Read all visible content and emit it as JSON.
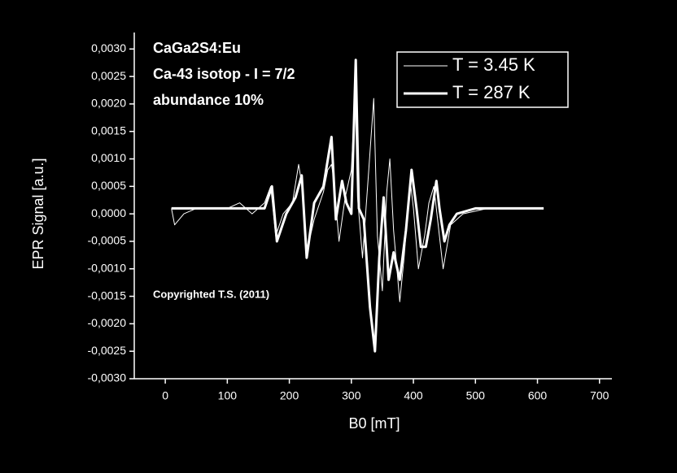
{
  "chart_data": {
    "type": "line",
    "annotations": [
      "CaGa2S4:Eu",
      "Ca-43 isotop - I = 7/2",
      "abundance 10%",
      "Copyrighted T.S. (2011)"
    ],
    "x_label": "B0 [mT]",
    "y_label": "EPR Signal [a.u.]",
    "xlim": [
      -50,
      720
    ],
    "ylim": [
      -0.003,
      0.0033
    ],
    "xticks": [
      0,
      100,
      200,
      300,
      400,
      500,
      600,
      700
    ],
    "yticks": [
      {
        "value": -0.003,
        "label": "-0,0030"
      },
      {
        "value": -0.0025,
        "label": "-0,0025"
      },
      {
        "value": -0.002,
        "label": "-0,0020"
      },
      {
        "value": -0.0015,
        "label": "-0,0015"
      },
      {
        "value": -0.001,
        "label": "-0,0010"
      },
      {
        "value": -0.0005,
        "label": "-0,0005"
      },
      {
        "value": 0,
        "label": "0,0000"
      },
      {
        "value": 0.0005,
        "label": "0,0005"
      },
      {
        "value": 0.001,
        "label": "0,0010"
      },
      {
        "value": 0.0015,
        "label": "0,0015"
      },
      {
        "value": 0.002,
        "label": "0,0020"
      },
      {
        "value": 0.0025,
        "label": "0,0025"
      },
      {
        "value": 0.003,
        "label": "0,0030"
      }
    ],
    "legend": "upper right",
    "series": [
      {
        "name": "T = 3.45 K",
        "color": "#ffffff",
        "line_width": 1,
        "x": [
          10,
          15,
          30,
          50,
          80,
          100,
          120,
          140,
          160,
          170,
          178,
          190,
          205,
          215,
          222,
          228,
          240,
          255,
          262,
          268,
          272,
          280,
          290,
          300,
          306,
          310,
          318,
          328,
          336,
          342,
          350,
          357,
          362,
          368,
          378,
          385,
          395,
          400,
          408,
          418,
          425,
          433,
          440,
          448,
          460,
          480,
          520,
          560,
          610
        ],
        "values": [
          0.0001,
          -0.0002,
          0,
          0.0001,
          0.0001,
          0.0001,
          0.0002,
          0,
          0.0002,
          0.0005,
          -0.0004,
          0,
          0.0002,
          0.0009,
          0.0004,
          -0.0007,
          -0.0001,
          0.0004,
          0.0008,
          0.0009,
          0.0006,
          -0.0005,
          0.0003,
          0.0008,
          0.0022,
          0.0003,
          -0.0008,
          0.0008,
          0.0021,
          -0.0004,
          -0.0014,
          0.0004,
          0.001,
          -0.0003,
          -0.0016,
          -0.0008,
          0.0006,
          0.0001,
          -0.001,
          -0.0004,
          0.0002,
          0.0005,
          -0.0002,
          -0.001,
          -0.0002,
          0,
          0.0001,
          0.0001,
          0.0001
        ]
      },
      {
        "name": "T = 287 K",
        "color": "#ffffff",
        "line_width": 3,
        "x": [
          10,
          30,
          60,
          100,
          120,
          140,
          160,
          172,
          180,
          195,
          210,
          220,
          228,
          240,
          255,
          268,
          275,
          285,
          292,
          300,
          307,
          312,
          320,
          330,
          338,
          345,
          352,
          360,
          368,
          378,
          388,
          397,
          405,
          412,
          420,
          428,
          437,
          442,
          450,
          458,
          470,
          500,
          550,
          610
        ],
        "values": [
          0.0001,
          0.0001,
          0.0001,
          0.0001,
          0.0001,
          0.0001,
          0.0001,
          0.0005,
          -0.0005,
          0,
          0.0003,
          0.0007,
          -0.0008,
          0.0002,
          0.0005,
          0.0014,
          -0.0001,
          0.0006,
          0.0002,
          0,
          0.0028,
          0.0001,
          -0.0001,
          -0.0017,
          -0.0025,
          -0.0008,
          0.0003,
          -0.0012,
          -0.0007,
          -0.0012,
          -0.0003,
          0.0008,
          0.0001,
          -0.0006,
          -0.0006,
          -0.0001,
          0.0006,
          0.0001,
          -0.0005,
          -0.0002,
          0,
          0.0001,
          0.0001,
          0.0001
        ]
      }
    ]
  }
}
